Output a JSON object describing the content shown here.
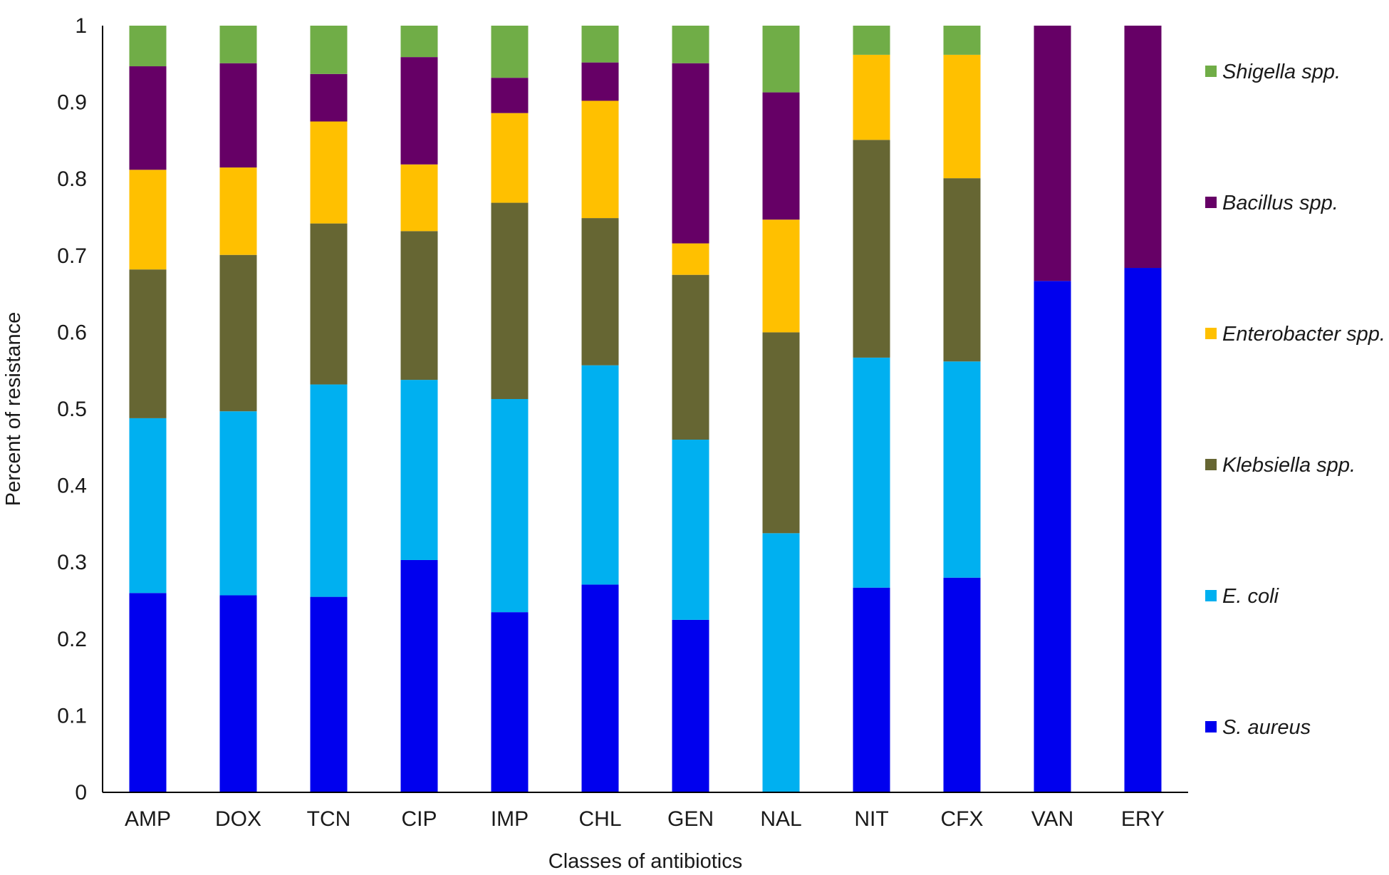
{
  "chart_data": {
    "type": "bar",
    "stacked": true,
    "title": "",
    "xlabel": "Classes of antibiotics",
    "ylabel": "Percent of resistance",
    "ylim": [
      0,
      1
    ],
    "yticks": [
      0,
      0.1,
      0.2,
      0.3,
      0.4,
      0.5,
      0.6,
      0.7,
      0.8,
      0.9,
      1
    ],
    "ytick_labels": [
      "0",
      "0.1",
      "0.2",
      "0.3",
      "0.4",
      "0.5",
      "0.6",
      "0.7",
      "0.8",
      "0.9",
      "1"
    ],
    "grid": false,
    "legend_position": "right",
    "categories": [
      "AMP",
      "DOX",
      "TCN",
      "CIP",
      "IMP",
      "CHL",
      "GEN",
      "NAL",
      "NIT",
      "CFX",
      "VAN",
      "ERY"
    ],
    "series": [
      {
        "name": "S. aureus",
        "color": "#0000EE",
        "values": [
          0.26,
          0.257,
          0.255,
          0.303,
          0.235,
          0.271,
          0.225,
          0,
          0.267,
          0.28,
          0.667,
          0.684
        ]
      },
      {
        "name": "E. coli",
        "color": "#00B0F0",
        "values": [
          0.228,
          0.24,
          0.277,
          0.235,
          0.278,
          0.286,
          0.235,
          0.338,
          0.3,
          0.282,
          0,
          0
        ]
      },
      {
        "name": "Klebsiella spp.",
        "color": "#666633",
        "values": [
          0.194,
          0.204,
          0.21,
          0.194,
          0.256,
          0.192,
          0.215,
          0.262,
          0.284,
          0.239,
          0,
          0
        ]
      },
      {
        "name": "Enterobacter spp.",
        "color": "#FFC000",
        "values": [
          0.13,
          0.114,
          0.133,
          0.087,
          0.117,
          0.153,
          0.041,
          0.147,
          0.111,
          0.161,
          0,
          0
        ]
      },
      {
        "name": "Bacillus spp.",
        "color": "#660066",
        "values": [
          0.135,
          0.136,
          0.062,
          0.14,
          0.046,
          0.05,
          0.235,
          0.166,
          0,
          0,
          0.333,
          0.316
        ]
      },
      {
        "name": "Shigella spp.",
        "color": "#70AD47",
        "values": [
          0.053,
          0.049,
          0.063,
          0.041,
          0.068,
          0.048,
          0.049,
          0.087,
          0.038,
          0.038,
          0,
          0
        ]
      }
    ]
  }
}
